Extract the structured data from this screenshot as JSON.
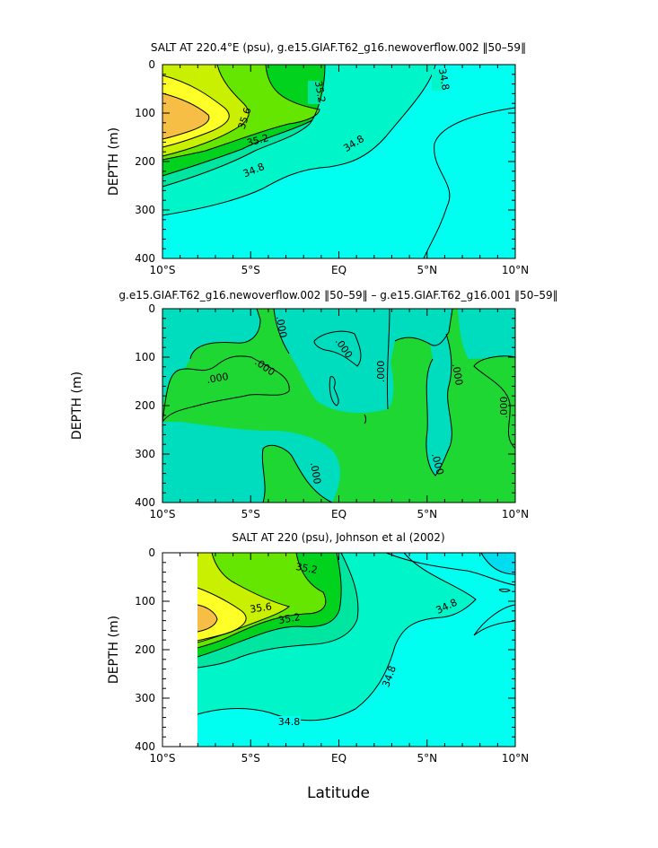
{
  "figure": {
    "xlabel": "Latitude"
  },
  "colors": {
    "s346": "#00fff0",
    "s348": "#00f5c8",
    "s350": "#00e6a0",
    "s352": "#00d21e",
    "s354": "#64e600",
    "s356": "#c8f000",
    "s358": "#ffff28",
    "s360": "#f7be46",
    "diff_pos": "#00ddbe",
    "diff_neg": "#1ed732"
  },
  "chart_data": [
    {
      "type": "contour",
      "title": "SALT AT 220.4°E (psu), g.e15.GIAF.T62_g16.newoverflow.002 ‖50–59‖",
      "ylabel": "DEPTH (m)",
      "xlim": [
        -10,
        10
      ],
      "ylim": [
        400,
        0
      ],
      "x_ticks": [
        "10°S",
        "5°S",
        "EQ",
        "5°N",
        "10°N"
      ],
      "y_ticks": [
        "0",
        "100",
        "200",
        "300",
        "400"
      ],
      "contour_levels_psu": [
        34.8,
        35.0,
        35.2,
        35.4,
        35.6,
        35.8
      ],
      "contour_labels": [
        "35.2",
        "34.8",
        "35.6",
        "35.2",
        "34.8",
        "34.8"
      ],
      "salinity_max_psu": 35.8,
      "salinity_max_location": {
        "lat": -9.5,
        "depth_m": 120
      }
    },
    {
      "type": "contour",
      "title": "g.e15.GIAF.T62_g16.newoverflow.002 ‖50–59‖ – g.e15.GIAF.T62_g16.001 ‖50–59‖",
      "ylabel": "DEPTH (m)",
      "xlim": [
        -10,
        10
      ],
      "ylim": [
        400,
        0
      ],
      "x_ticks": [
        "10°S",
        "5°S",
        "EQ",
        "5°N",
        "10°N"
      ],
      "y_ticks": [
        "0",
        "100",
        "200",
        "300",
        "400"
      ],
      "contour_levels": [
        0.0
      ],
      "contour_labels": [
        ".000",
        ".000",
        ".000",
        ".000",
        ".000",
        ".000",
        ".000",
        ".000",
        ".000"
      ]
    },
    {
      "type": "contour",
      "title": "SALT AT 220 (psu), Johnson et al (2002)",
      "ylabel": "DEPTH (m)",
      "xlim": [
        -10,
        10
      ],
      "ylim": [
        400,
        0
      ],
      "data_lat_range": [
        -8,
        10
      ],
      "x_ticks": [
        "10°S",
        "5°S",
        "EQ",
        "5°N",
        "10°N"
      ],
      "y_ticks": [
        "0",
        "100",
        "200",
        "300",
        "400"
      ],
      "contour_levels_psu": [
        34.6,
        34.8,
        35.0,
        35.2,
        35.4,
        35.6,
        35.8
      ],
      "contour_labels": [
        "35.2",
        "35.6",
        "35.2",
        "34.8",
        "34.8",
        "34.8"
      ],
      "salinity_max_psu": 35.8,
      "salinity_max_location": {
        "lat": -7.3,
        "depth_m": 130
      }
    }
  ]
}
